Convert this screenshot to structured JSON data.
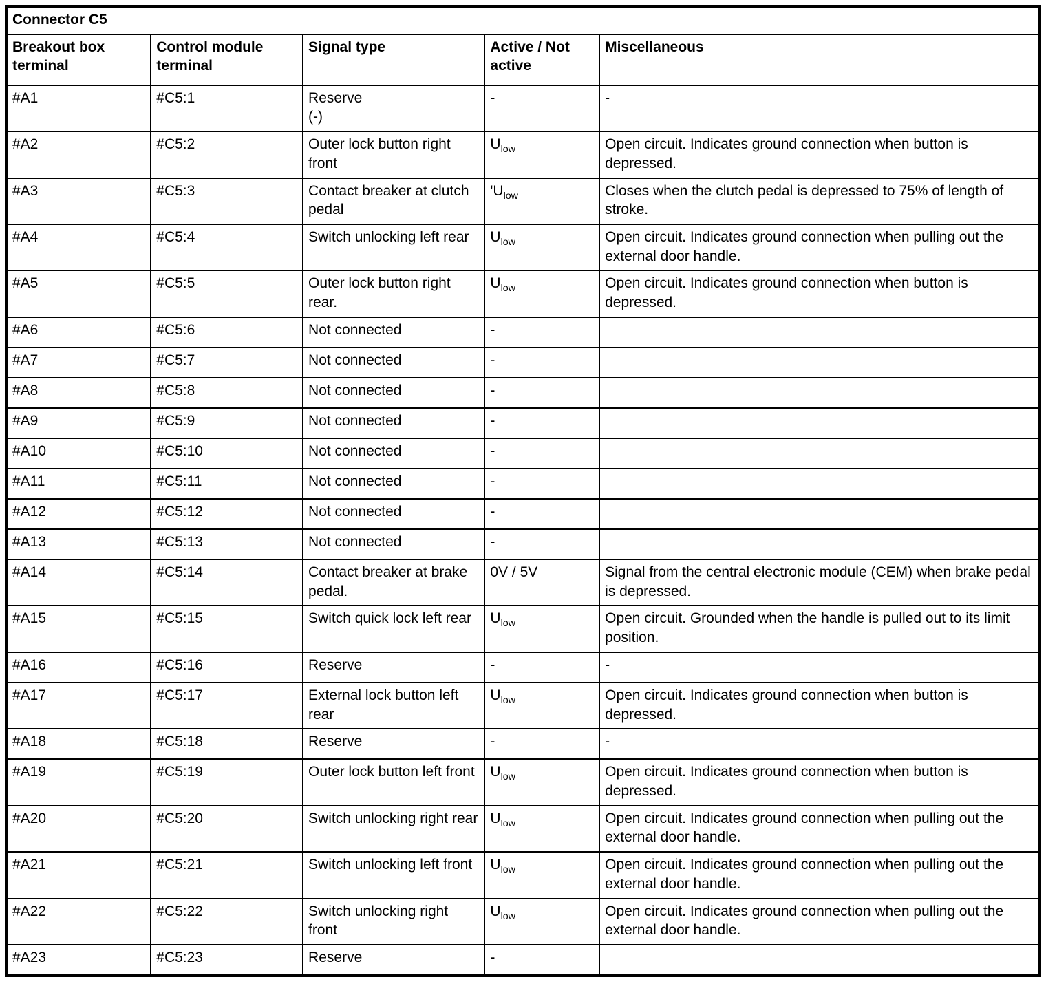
{
  "table": {
    "title": "Connector C5",
    "columns": [
      "Breakout box terminal",
      "Control module terminal",
      "Signal type",
      "Active / Not active",
      "Miscellaneous"
    ],
    "rows": [
      [
        "#A1",
        "#C5:1",
        "Reserve\n(-)",
        "-",
        "-"
      ],
      [
        "#A2",
        "#C5:2",
        "Outer lock button right front",
        "U_{low}",
        "Open circuit. Indicates ground connection when button is depressed."
      ],
      [
        "#A3",
        "#C5:3",
        "Contact breaker at clutch pedal",
        "'U_{low}",
        "Closes when the clutch pedal is depressed to 75% of length of stroke."
      ],
      [
        "#A4",
        "#C5:4",
        "Switch unlocking left rear",
        "U_{low}",
        "Open circuit. Indicates ground connection when pulling out the external door handle."
      ],
      [
        "#A5",
        "#C5:5",
        "Outer lock button right rear.",
        "U_{low}",
        "Open circuit. Indicates ground connection when button is depressed."
      ],
      [
        "#A6",
        "#C5:6",
        "Not connected",
        "-",
        ""
      ],
      [
        "#A7",
        "#C5:7",
        "Not connected",
        "-",
        ""
      ],
      [
        "#A8",
        "#C5:8",
        "Not connected",
        "-",
        ""
      ],
      [
        "#A9",
        "#C5:9",
        "Not connected",
        "-",
        ""
      ],
      [
        "#A10",
        "#C5:10",
        "Not connected",
        "-",
        ""
      ],
      [
        "#A11",
        "#C5:11",
        "Not connected",
        "-",
        ""
      ],
      [
        "#A12",
        "#C5:12",
        "Not connected",
        "-",
        ""
      ],
      [
        "#A13",
        "#C5:13",
        "Not connected",
        "-",
        ""
      ],
      [
        "#A14",
        "#C5:14",
        "Contact breaker at brake pedal.",
        "0V / 5V",
        "Signal from the central electronic module (CEM) when brake pedal is depressed."
      ],
      [
        "#A15",
        "#C5:15",
        "Switch quick lock left rear",
        "U_{low}",
        "Open circuit. Grounded when the handle is pulled out to its limit position."
      ],
      [
        "#A16",
        "#C5:16",
        "Reserve",
        "-",
        "-"
      ],
      [
        "#A17",
        "#C5:17",
        "External lock button left rear",
        "U_{low}",
        "Open circuit. Indicates ground connection when button is depressed."
      ],
      [
        "#A18",
        "#C5:18",
        "Reserve",
        "-",
        "-"
      ],
      [
        "#A19",
        "#C5:19",
        "Outer lock button left front",
        "U_{low}",
        "Open circuit. Indicates ground connection when button is depressed."
      ],
      [
        "#A20",
        "#C5:20",
        "Switch unlocking right rear",
        "U_{low}",
        "Open circuit. Indicates ground connection when pulling out the external door handle."
      ],
      [
        "#A21",
        "#C5:21",
        "Switch unlocking left front",
        "U_{low}",
        "Open circuit. Indicates ground connection when pulling out the external door handle."
      ],
      [
        "#A22",
        "#C5:22",
        "Switch unlocking right front",
        "U_{low}",
        "Open circuit. Indicates ground connection when pulling out the external door handle."
      ],
      [
        "#A23",
        "#C5:23",
        "Reserve",
        "-",
        ""
      ]
    ]
  }
}
